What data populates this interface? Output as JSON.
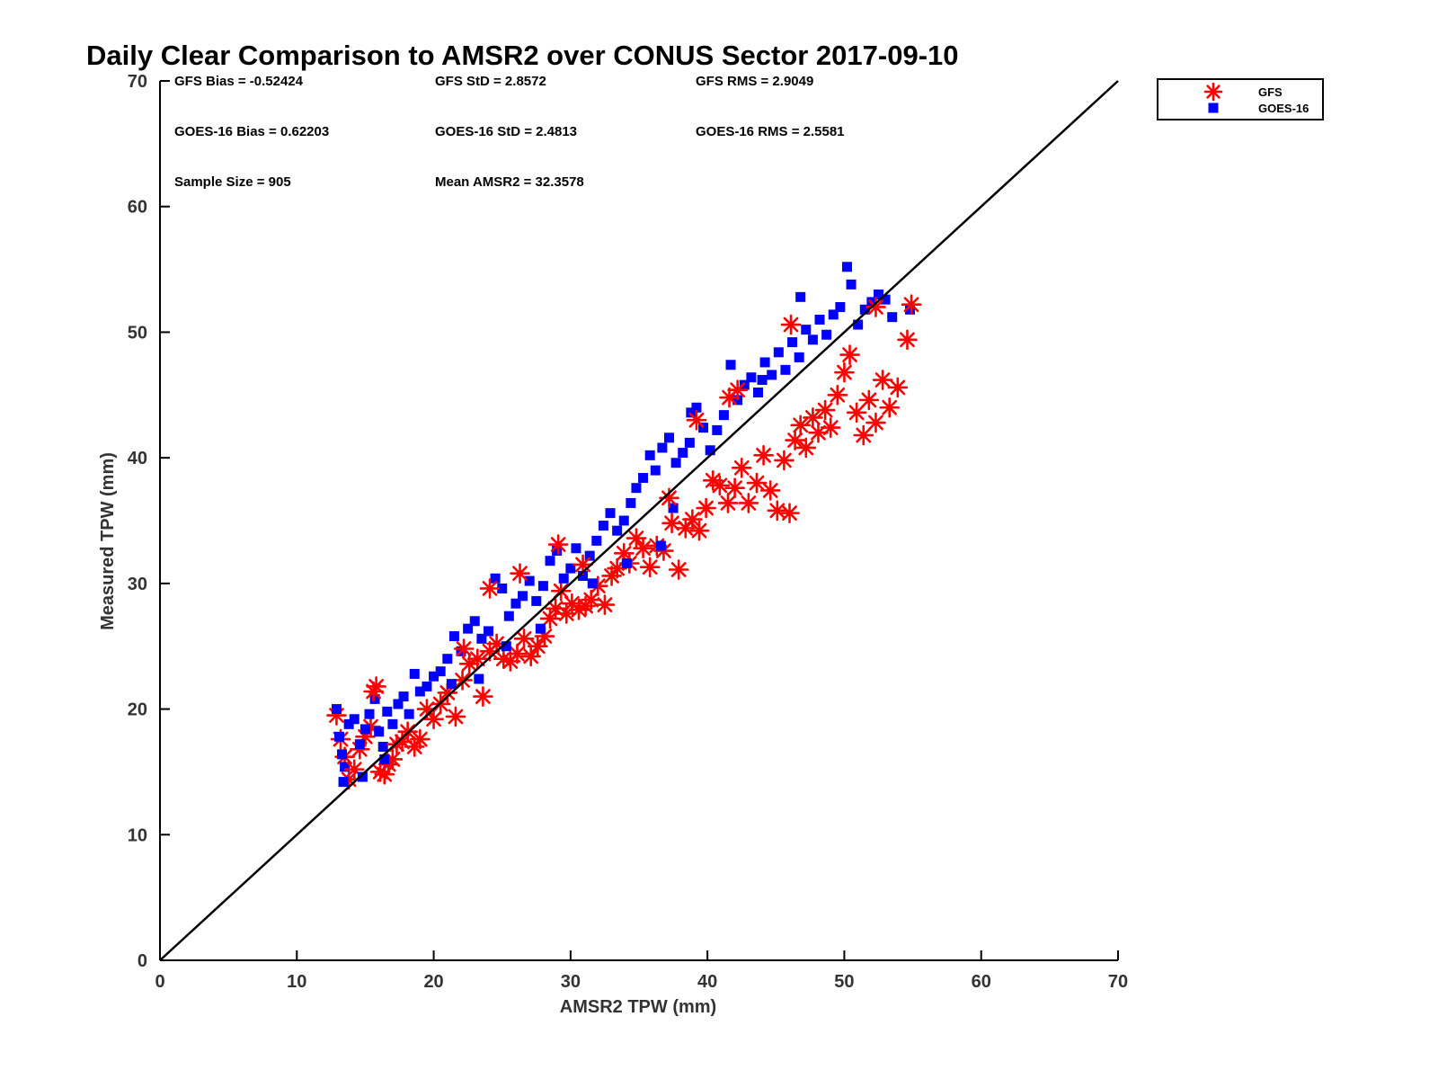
{
  "chart_data": {
    "type": "scatter",
    "title": "Daily Clear Comparison to AMSR2 over CONUS Sector 2017-09-10",
    "xlabel": "AMSR2 TPW (mm)",
    "ylabel": "Measured TPW (mm)",
    "xlim": [
      0,
      70
    ],
    "ylim": [
      0,
      70
    ],
    "xticks": [
      "0",
      "10",
      "20",
      "30",
      "40",
      "50",
      "60",
      "70"
    ],
    "yticks": [
      "0",
      "10",
      "20",
      "30",
      "40",
      "50",
      "60",
      "70"
    ],
    "grid": false,
    "legend_position": "outside-top-right",
    "reference_line": {
      "type": "one-to-one",
      "from": [
        0,
        0
      ],
      "to": [
        70,
        70
      ],
      "color": "#000000"
    },
    "stats": [
      "GFS Bias = -0.52424",
      "GFS StD = 2.8572",
      "GFS RMS = 2.9049",
      "GOES-16 Bias = 0.62203",
      "GOES-16 StD = 2.4813",
      "GOES-16 RMS = 2.5581",
      "Sample Size = 905",
      "Mean AMSR2 = 32.3578"
    ],
    "series": [
      {
        "name": "GFS",
        "marker": "asterisk",
        "color": "#ff0000",
        "points": [
          [
            12.9,
            19.5
          ],
          [
            13.2,
            17.6
          ],
          [
            13.5,
            16.2
          ],
          [
            13.8,
            14.4
          ],
          [
            14.2,
            15.2
          ],
          [
            14.6,
            16.8
          ],
          [
            15.0,
            17.8
          ],
          [
            15.4,
            18.6
          ],
          [
            15.8,
            21.8
          ],
          [
            16.1,
            15.0
          ],
          [
            16.4,
            14.8
          ],
          [
            16.7,
            15.6
          ],
          [
            17.0,
            16.0
          ],
          [
            17.3,
            17.2
          ],
          [
            17.7,
            17.4
          ],
          [
            18.1,
            18.2
          ],
          [
            18.6,
            17.0
          ],
          [
            19.0,
            17.6
          ],
          [
            19.5,
            20.0
          ],
          [
            20.0,
            19.2
          ],
          [
            20.5,
            20.4
          ],
          [
            21.0,
            21.3
          ],
          [
            21.6,
            19.4
          ],
          [
            22.1,
            22.3
          ],
          [
            22.6,
            23.6
          ],
          [
            23.2,
            24.0
          ],
          [
            23.6,
            21.0
          ],
          [
            24.1,
            24.6
          ],
          [
            24.6,
            25.2
          ],
          [
            25.1,
            24.0
          ],
          [
            25.6,
            23.8
          ],
          [
            26.1,
            24.4
          ],
          [
            26.6,
            25.6
          ],
          [
            27.1,
            24.2
          ],
          [
            27.6,
            25.0
          ],
          [
            28.1,
            25.8
          ],
          [
            28.5,
            27.2
          ],
          [
            28.9,
            28.0
          ],
          [
            29.3,
            29.4
          ],
          [
            29.7,
            27.6
          ],
          [
            30.1,
            28.4
          ],
          [
            30.6,
            27.9
          ],
          [
            31.1,
            28.2
          ],
          [
            31.5,
            28.7
          ],
          [
            32.0,
            29.8
          ],
          [
            32.5,
            28.3
          ],
          [
            33.0,
            30.6
          ],
          [
            33.4,
            31.2
          ],
          [
            33.9,
            32.4
          ],
          [
            34.3,
            31.6
          ],
          [
            34.8,
            33.6
          ],
          [
            35.3,
            32.8
          ],
          [
            35.8,
            31.3
          ],
          [
            36.3,
            33.0
          ],
          [
            36.8,
            32.6
          ],
          [
            37.4,
            34.8
          ],
          [
            37.9,
            31.1
          ],
          [
            38.4,
            34.4
          ],
          [
            38.9,
            35.1
          ],
          [
            39.4,
            34.2
          ],
          [
            39.9,
            36.0
          ],
          [
            40.4,
            38.2
          ],
          [
            40.9,
            37.8
          ],
          [
            41.5,
            36.4
          ],
          [
            42.0,
            37.6
          ],
          [
            42.5,
            39.2
          ],
          [
            43.0,
            36.4
          ],
          [
            43.6,
            38.0
          ],
          [
            44.1,
            40.2
          ],
          [
            44.6,
            37.4
          ],
          [
            45.1,
            35.8
          ],
          [
            45.6,
            39.8
          ],
          [
            46.0,
            35.6
          ],
          [
            46.4,
            41.4
          ],
          [
            46.8,
            42.6
          ],
          [
            47.2,
            40.8
          ],
          [
            47.7,
            43.2
          ],
          [
            48.1,
            42.0
          ],
          [
            48.6,
            43.8
          ],
          [
            49.0,
            42.4
          ],
          [
            49.5,
            45.0
          ],
          [
            50.0,
            46.8
          ],
          [
            50.4,
            48.2
          ],
          [
            50.9,
            43.6
          ],
          [
            51.4,
            41.8
          ],
          [
            51.8,
            44.6
          ],
          [
            52.3,
            42.8
          ],
          [
            52.8,
            46.2
          ],
          [
            53.3,
            44.0
          ],
          [
            53.9,
            45.6
          ],
          [
            54.6,
            49.4
          ],
          [
            54.9,
            52.2
          ],
          [
            42.2,
            45.4
          ],
          [
            41.6,
            44.8
          ],
          [
            39.2,
            43.0
          ],
          [
            37.2,
            36.8
          ],
          [
            30.9,
            31.5
          ],
          [
            29.1,
            33.1
          ],
          [
            26.3,
            30.8
          ],
          [
            24.1,
            29.6
          ],
          [
            46.1,
            50.6
          ],
          [
            52.3,
            52.0
          ],
          [
            22.2,
            24.8
          ],
          [
            15.6,
            21.4
          ]
        ]
      },
      {
        "name": "GOES-16",
        "marker": "square",
        "color": "#0000ff",
        "points": [
          [
            12.9,
            20.0
          ],
          [
            13.1,
            17.8
          ],
          [
            13.3,
            16.4
          ],
          [
            13.5,
            15.4
          ],
          [
            13.8,
            18.8
          ],
          [
            14.2,
            19.2
          ],
          [
            14.6,
            17.2
          ],
          [
            15.0,
            18.4
          ],
          [
            15.3,
            19.6
          ],
          [
            15.7,
            20.8
          ],
          [
            16.0,
            18.2
          ],
          [
            16.3,
            17.0
          ],
          [
            16.6,
            19.8
          ],
          [
            17.0,
            18.8
          ],
          [
            17.4,
            20.4
          ],
          [
            17.8,
            21.0
          ],
          [
            18.2,
            19.6
          ],
          [
            18.6,
            22.8
          ],
          [
            19.0,
            21.4
          ],
          [
            19.5,
            21.8
          ],
          [
            20.0,
            22.6
          ],
          [
            20.5,
            23.0
          ],
          [
            21.0,
            24.0
          ],
          [
            21.5,
            25.8
          ],
          [
            22.0,
            24.6
          ],
          [
            22.5,
            26.4
          ],
          [
            23.0,
            27.0
          ],
          [
            23.5,
            25.6
          ],
          [
            24.0,
            26.2
          ],
          [
            24.5,
            30.4
          ],
          [
            25.0,
            29.6
          ],
          [
            25.5,
            27.4
          ],
          [
            26.0,
            28.4
          ],
          [
            26.5,
            29.0
          ],
          [
            27.0,
            30.2
          ],
          [
            27.5,
            28.6
          ],
          [
            28.0,
            29.8
          ],
          [
            28.5,
            31.8
          ],
          [
            29.0,
            32.6
          ],
          [
            29.5,
            30.4
          ],
          [
            30.0,
            31.2
          ],
          [
            30.4,
            32.8
          ],
          [
            30.9,
            30.6
          ],
          [
            31.4,
            32.2
          ],
          [
            31.9,
            33.4
          ],
          [
            32.4,
            34.6
          ],
          [
            32.9,
            35.6
          ],
          [
            33.4,
            34.2
          ],
          [
            33.9,
            35.0
          ],
          [
            34.4,
            36.4
          ],
          [
            34.8,
            37.6
          ],
          [
            35.3,
            38.4
          ],
          [
            35.8,
            40.2
          ],
          [
            36.2,
            39.0
          ],
          [
            36.7,
            40.8
          ],
          [
            37.2,
            41.6
          ],
          [
            37.7,
            39.6
          ],
          [
            38.2,
            40.4
          ],
          [
            38.7,
            41.2
          ],
          [
            39.2,
            44.0
          ],
          [
            39.7,
            42.4
          ],
          [
            40.2,
            40.6
          ],
          [
            40.7,
            42.2
          ],
          [
            41.2,
            43.4
          ],
          [
            41.7,
            47.4
          ],
          [
            42.2,
            44.6
          ],
          [
            42.7,
            45.8
          ],
          [
            43.2,
            46.4
          ],
          [
            43.7,
            45.2
          ],
          [
            44.2,
            47.6
          ],
          [
            44.7,
            46.6
          ],
          [
            45.2,
            48.4
          ],
          [
            45.7,
            47.0
          ],
          [
            46.2,
            49.2
          ],
          [
            46.7,
            48.0
          ],
          [
            47.2,
            50.2
          ],
          [
            47.7,
            49.4
          ],
          [
            48.2,
            51.0
          ],
          [
            48.7,
            49.8
          ],
          [
            49.2,
            51.4
          ],
          [
            49.7,
            52.0
          ],
          [
            50.2,
            55.2
          ],
          [
            50.5,
            53.8
          ],
          [
            51.0,
            50.6
          ],
          [
            51.5,
            51.8
          ],
          [
            52.0,
            52.4
          ],
          [
            52.5,
            53.0
          ],
          [
            53.0,
            52.6
          ],
          [
            53.5,
            51.2
          ],
          [
            54.8,
            51.8
          ],
          [
            46.8,
            52.8
          ],
          [
            44.0,
            46.2
          ],
          [
            38.8,
            43.6
          ],
          [
            37.5,
            36.0
          ],
          [
            36.6,
            33.0
          ],
          [
            34.1,
            31.6
          ],
          [
            31.6,
            30.0
          ],
          [
            27.8,
            26.4
          ],
          [
            25.3,
            25.0
          ],
          [
            23.3,
            22.4
          ],
          [
            21.3,
            22.0
          ],
          [
            14.8,
            14.6
          ],
          [
            13.4,
            14.2
          ],
          [
            16.4,
            16.0
          ]
        ]
      }
    ]
  }
}
